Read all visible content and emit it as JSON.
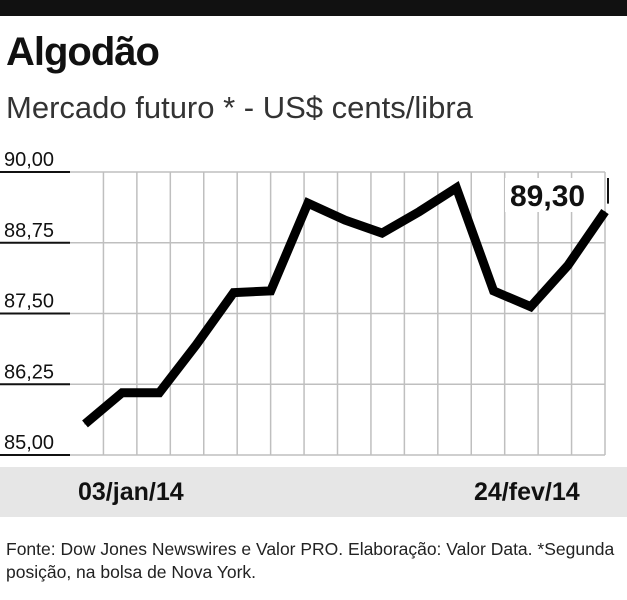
{
  "header": {
    "title": "Algodão",
    "subtitle": "Mercado futuro * - US$ cents/libra"
  },
  "footer": {
    "source": "Fonte: Dow Jones Newswires e Valor PRO. Elaboração: Valor Data. *Segunda posição, na bolsa de Nova York."
  },
  "chart_data": {
    "type": "line",
    "title": "Algodão",
    "subtitle": "Mercado futuro * - US$ cents/libra",
    "ylim": [
      85.0,
      90.0
    ],
    "yticks": [
      85.0,
      86.25,
      87.5,
      88.75,
      90.0
    ],
    "ytick_labels": [
      "85,00",
      "86,25",
      "87,50",
      "88,75",
      "90,00"
    ],
    "xtick_labels": [
      "03/jan/14",
      "24/fev/14"
    ],
    "grid": true,
    "annotation": "89,30",
    "series": [
      {
        "values": [
          85.55,
          86.1,
          86.1,
          86.95,
          87.87,
          87.9,
          89.45,
          89.15,
          88.92,
          89.3,
          89.72,
          87.9,
          87.62,
          88.35,
          89.3
        ]
      }
    ]
  }
}
